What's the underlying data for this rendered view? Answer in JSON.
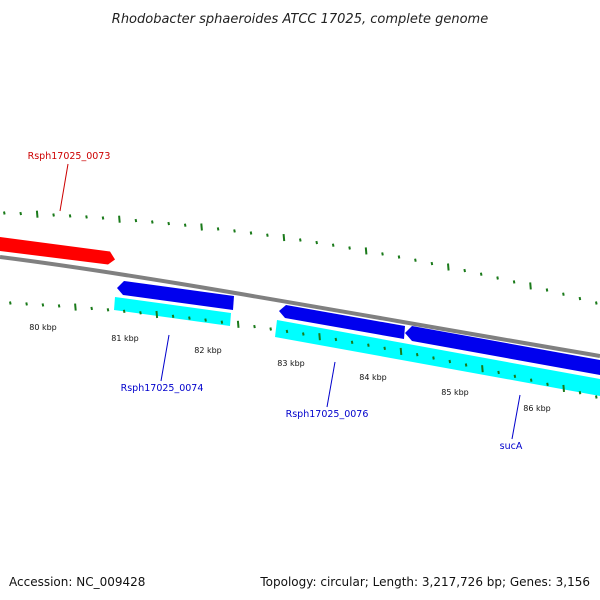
{
  "title": "Rhodobacter sphaeroides ATCC 17025, complete genome",
  "footer": {
    "accession": "Accession: NC_009428",
    "summary": "Topology: circular; Length: 3,217,726 bp; Genes: 3,156"
  },
  "colors": {
    "backbone": "#808080",
    "tick": "#1a7a1a",
    "forward_gene": "#ff0000",
    "forward_gene_label": "#cc0000",
    "reverse_gene": "#0000ee",
    "reverse_cds": "#00ffff",
    "reverse_gene_label": "#0000cc"
  },
  "ticks": {
    "labels": [
      "80 kbp",
      "81 kbp",
      "82 kbp",
      "83 kbp",
      "84 kbp",
      "85 kbp",
      "86 kbp"
    ]
  },
  "genes": [
    {
      "id": "Rsph17025_0073",
      "label": "Rsph17025_0073",
      "strand": "forward",
      "icon": "arrow-right"
    },
    {
      "id": "Rsph17025_0074",
      "label": "Rsph17025_0074",
      "strand": "reverse",
      "icon": "arrow-left"
    },
    {
      "id": "Rsph17025_0076",
      "label": "Rsph17025_0076",
      "strand": "reverse",
      "icon": "arrow-left"
    },
    {
      "id": "sucA",
      "label": "sucA",
      "strand": "reverse",
      "icon": "arrow-left"
    }
  ]
}
